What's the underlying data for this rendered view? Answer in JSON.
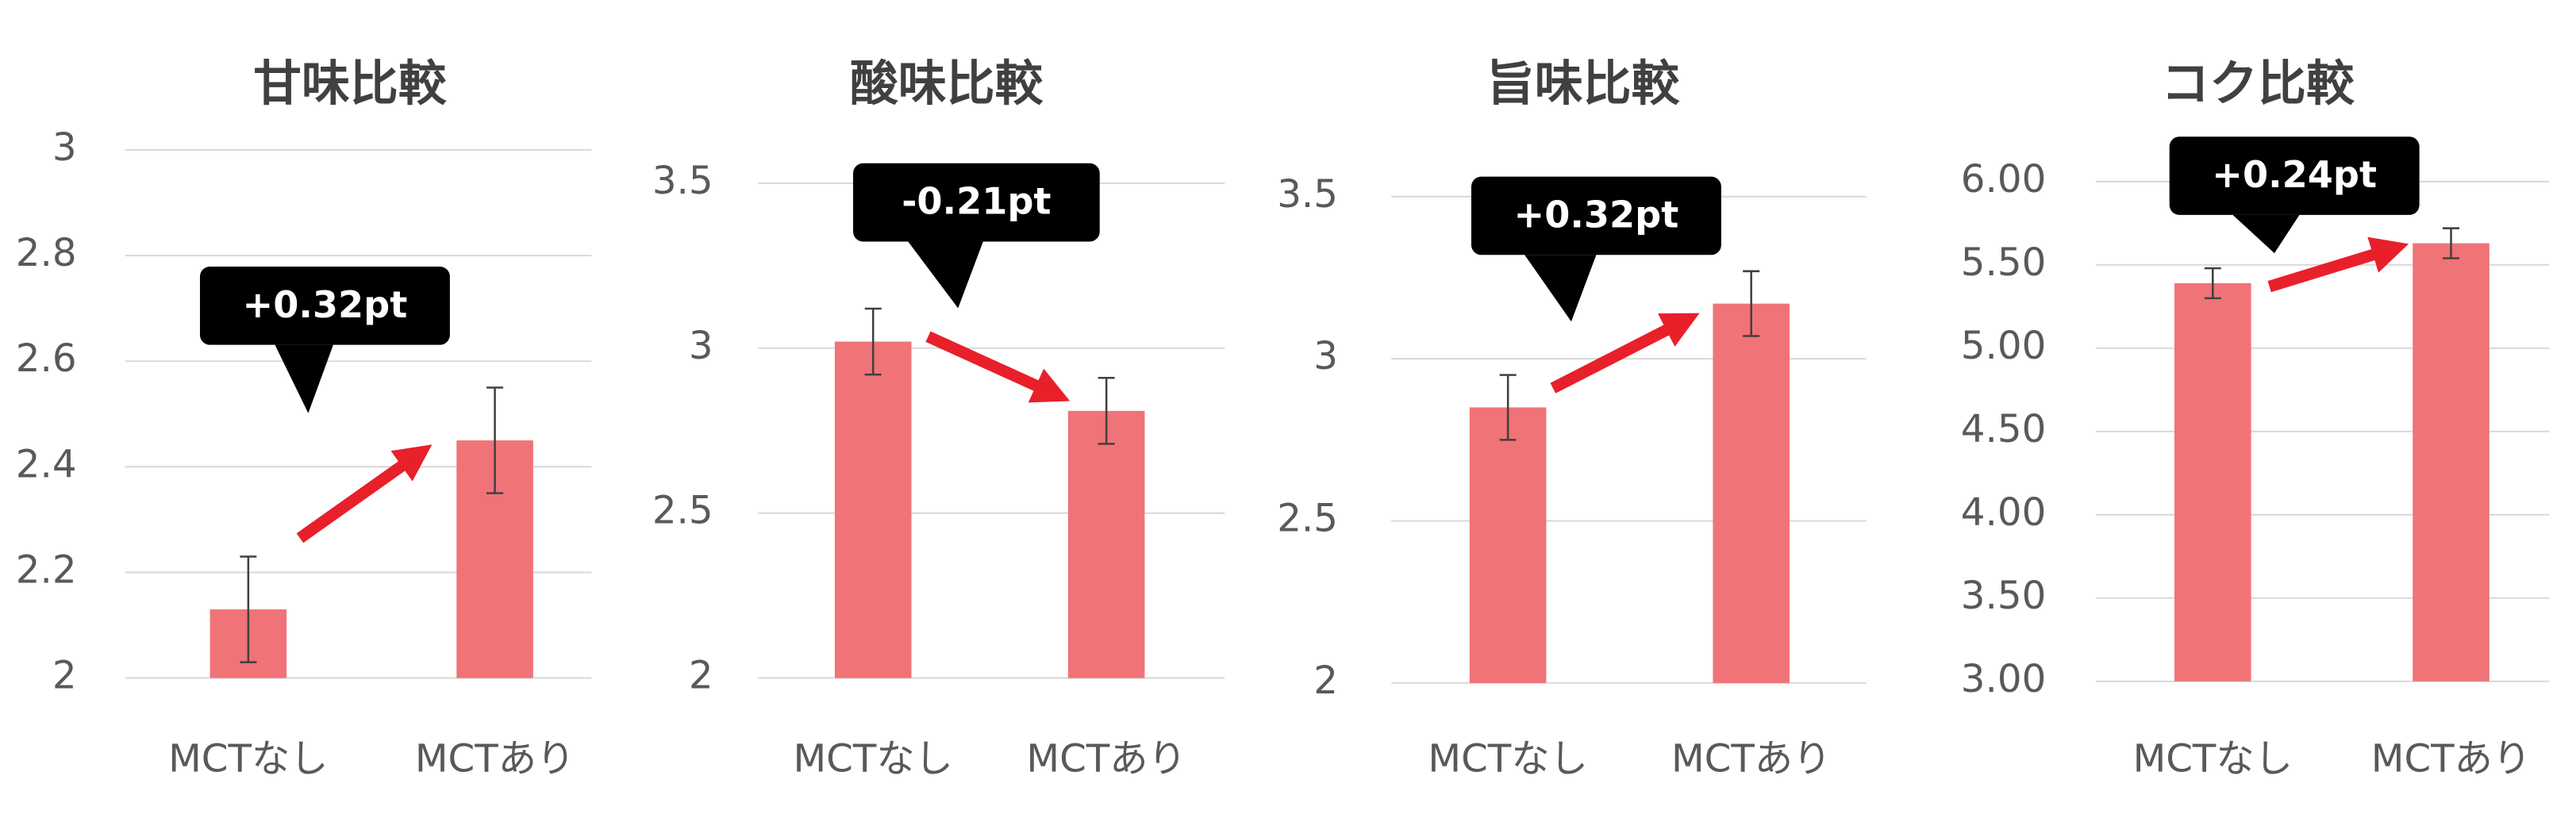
{
  "chart_data": [
    {
      "type": "bar",
      "title": "甘味比較",
      "categories": [
        "MCTなし",
        "MCTあり"
      ],
      "values": [
        2.13,
        2.45
      ],
      "errors": [
        0.1,
        0.1
      ],
      "color": "#f07378",
      "ylim": [
        2,
        3
      ],
      "yticks": [
        2,
        2.2,
        2.4,
        2.6,
        2.8,
        3
      ],
      "grid": true,
      "annotation": "+0.32pt"
    },
    {
      "type": "bar",
      "title": "酸味比較",
      "categories": [
        "MCTなし",
        "MCTあり"
      ],
      "values": [
        3.02,
        2.81
      ],
      "errors": [
        0.1,
        0.1
      ],
      "color": "#f07378",
      "ylim": [
        2,
        3.5
      ],
      "yticks": [
        2,
        2.5,
        3,
        3.5
      ],
      "grid": true,
      "annotation": "-0.21pt"
    },
    {
      "type": "bar",
      "title": "旨味比較",
      "categories": [
        "MCTなし",
        "MCTあり"
      ],
      "values": [
        2.85,
        3.17
      ],
      "errors": [
        0.1,
        0.1
      ],
      "color": "#f07378",
      "ylim": [
        2,
        3.5
      ],
      "yticks": [
        2,
        2.5,
        3,
        3.5
      ],
      "grid": true,
      "annotation": "+0.32pt"
    },
    {
      "type": "bar",
      "title": "コク比較",
      "categories": [
        "MCTなし",
        "MCTあり"
      ],
      "values": [
        5.39,
        5.63
      ],
      "errors": [
        0.09,
        0.09
      ],
      "color": "#f07378",
      "ylim": [
        3,
        6
      ],
      "yticks": [
        {
          "value": 3,
          "label": "3.00"
        },
        {
          "value": 3.5,
          "label": "3.50"
        },
        {
          "value": 4,
          "label": "4.00"
        },
        {
          "value": 4.5,
          "label": "4.50"
        },
        {
          "value": 5,
          "label": "5.00"
        },
        {
          "value": 5.5,
          "label": "5.50"
        },
        {
          "value": 6,
          "label": "6.00"
        }
      ],
      "grid": true,
      "annotation": "+0.24pt"
    }
  ]
}
